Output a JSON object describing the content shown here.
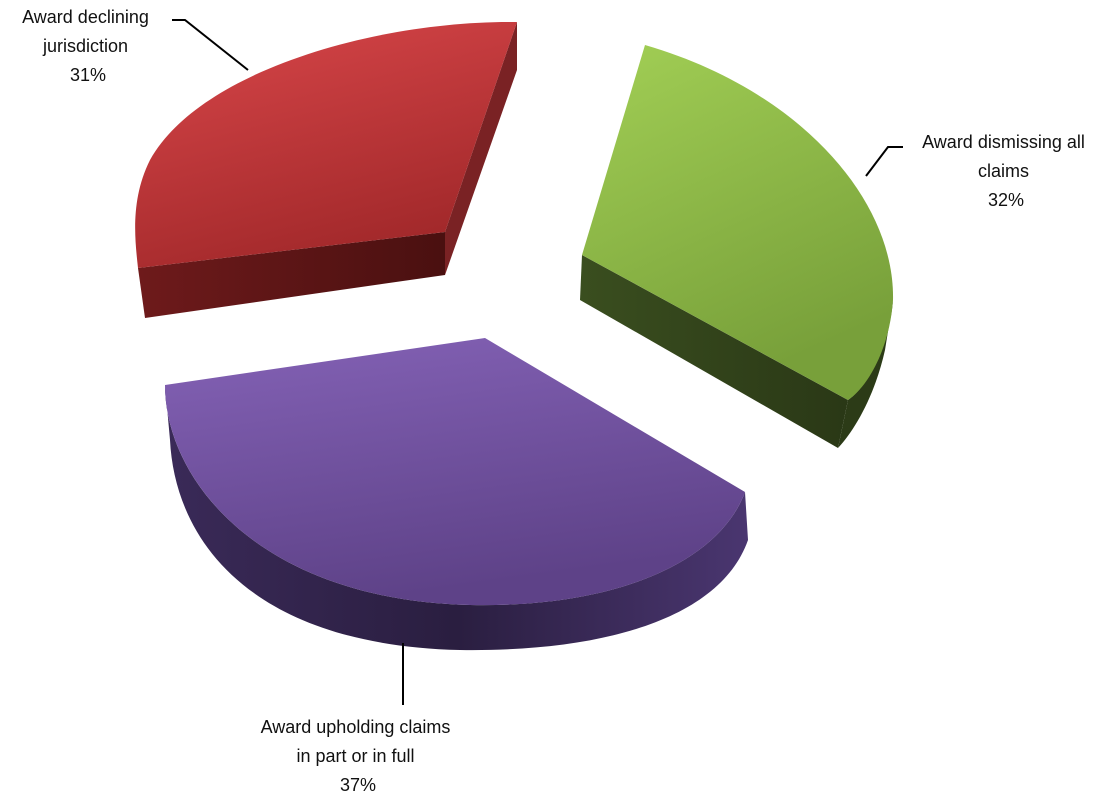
{
  "chart_data": {
    "type": "pie",
    "style": "exploded-3d",
    "slices": [
      {
        "category": "Award declining jurisdiction",
        "label_lines": [
          "Award declining",
          "jurisdiction"
        ],
        "value": 31,
        "value_text": "31%",
        "color": "#c0383a",
        "side_color": "#5e1516"
      },
      {
        "category": "Award dismissing all claims",
        "label_lines": [
          "Award dismissing all",
          "claims"
        ],
        "value": 32,
        "value_text": "32%",
        "color": "#8eb84a",
        "side_color": "#34461c"
      },
      {
        "category": "Award upholding claims in part or in full",
        "label_lines": [
          "Award upholding claims",
          "in part or in full"
        ],
        "value": 37,
        "value_text": "37%",
        "color": "#7654a6",
        "side_color": "#2e2144"
      }
    ],
    "legend": "none",
    "data_labels": "outside-with-leader-lines"
  }
}
